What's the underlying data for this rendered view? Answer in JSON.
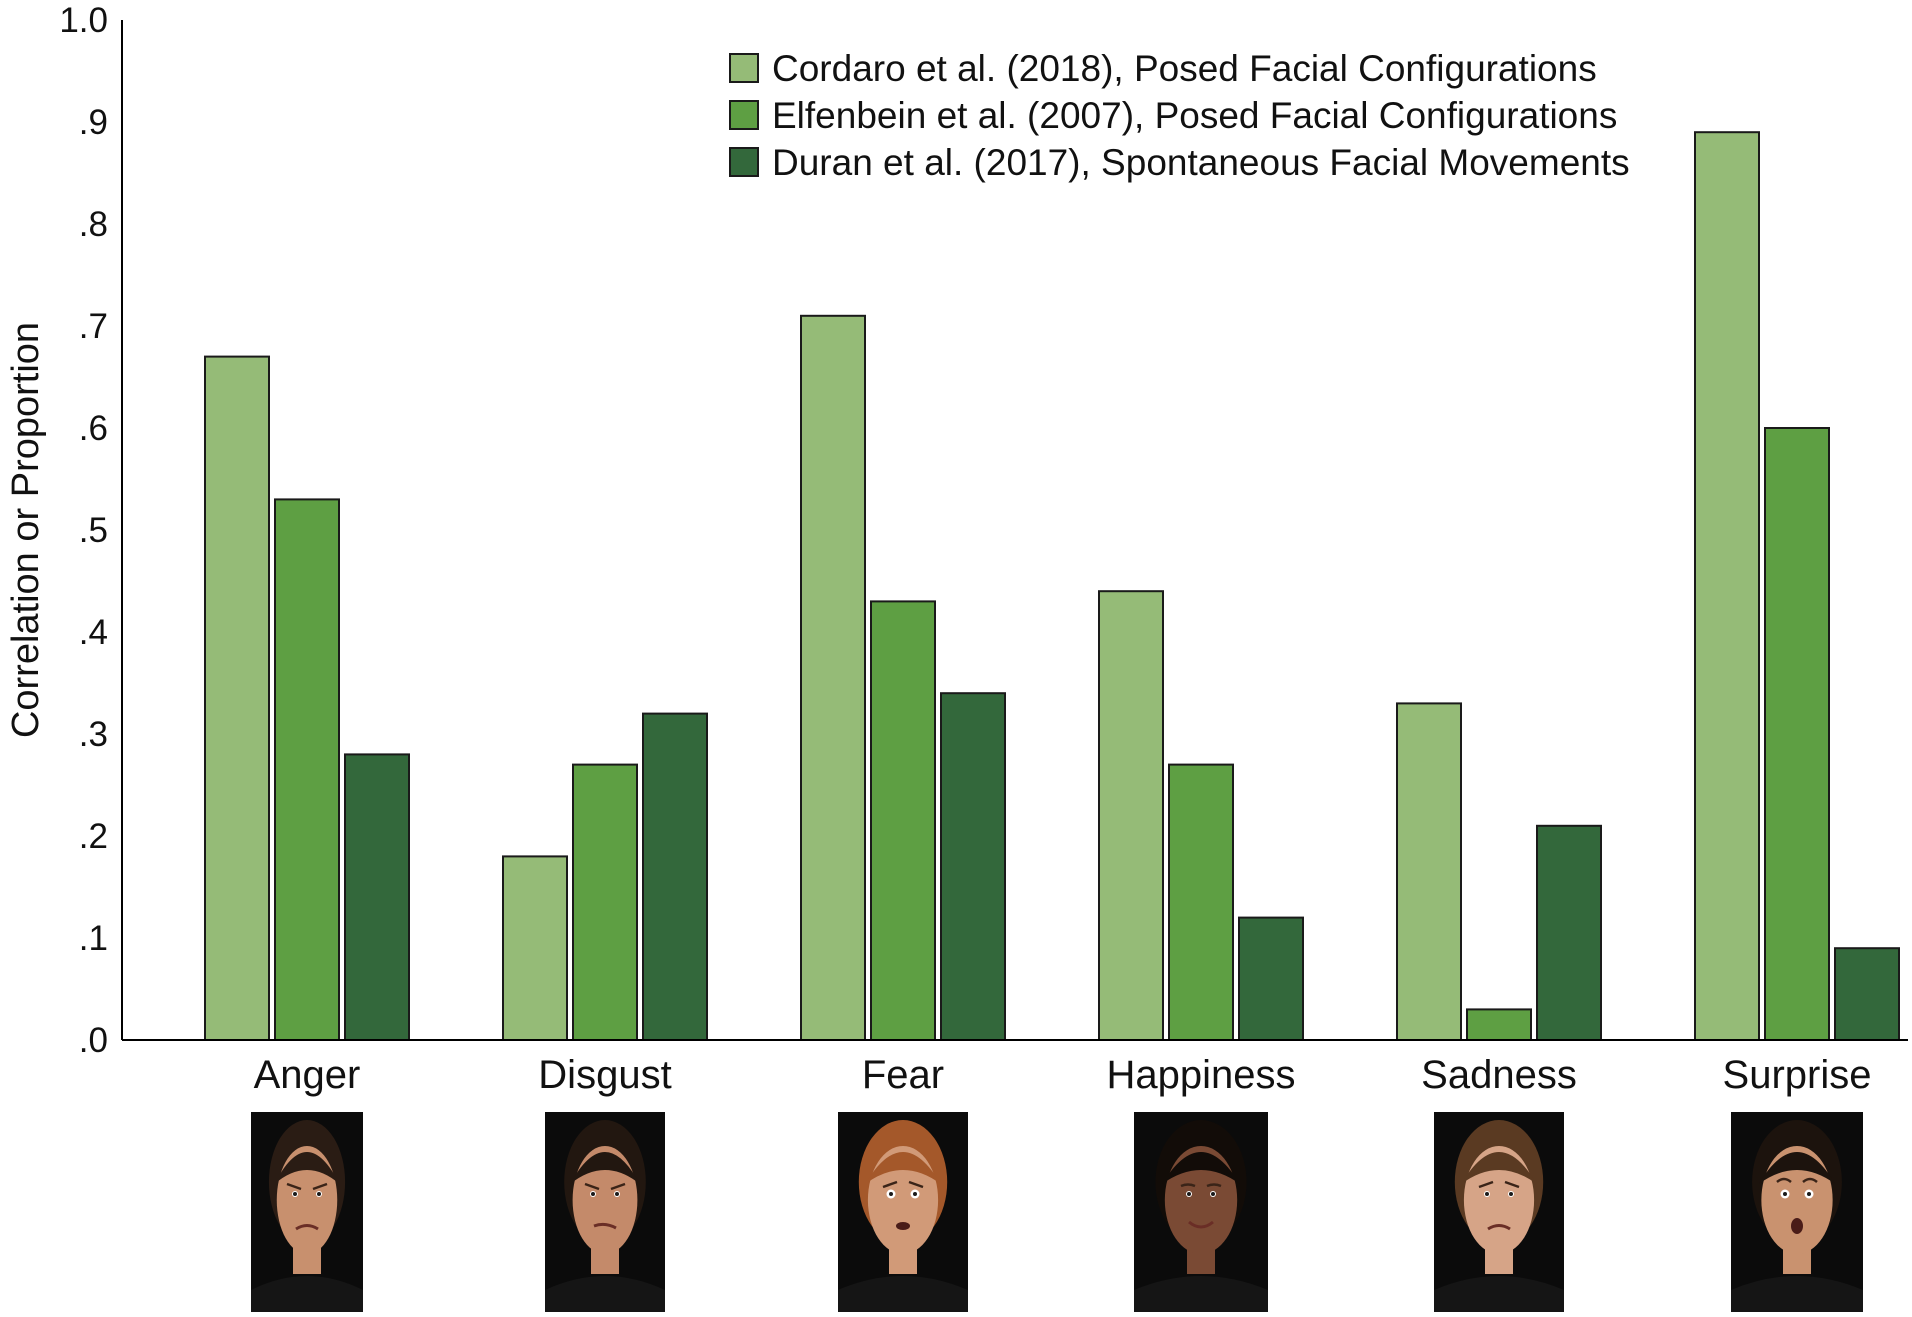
{
  "chart_data": {
    "type": "bar",
    "categories": [
      "Anger",
      "Disgust",
      "Fear",
      "Happiness",
      "Sadness",
      "Surprise"
    ],
    "series": [
      {
        "name": "Cordaro et al. (2018), Posed Facial Configurations",
        "color": "#95bb77",
        "values": [
          0.67,
          0.18,
          0.71,
          0.44,
          0.33,
          0.89
        ]
      },
      {
        "name": "Elfenbein et al. (2007), Posed Facial Configurations",
        "color": "#5e9f43",
        "values": [
          0.53,
          0.27,
          0.43,
          0.27,
          0.03,
          0.6
        ]
      },
      {
        "name": "Duran et al. (2017), Spontaneous Facial Movements",
        "color": "#33683b",
        "values": [
          0.28,
          0.32,
          0.34,
          0.12,
          0.21,
          0.09
        ]
      }
    ],
    "title": "",
    "xlabel": "",
    "ylabel": "Correlation or Proportion",
    "ylim": [
      0,
      1.0
    ],
    "yticks": [
      {
        "value": 0.0,
        "label": ".0"
      },
      {
        "value": 0.1,
        "label": ".1"
      },
      {
        "value": 0.2,
        "label": ".2"
      },
      {
        "value": 0.3,
        "label": ".3"
      },
      {
        "value": 0.4,
        "label": ".4"
      },
      {
        "value": 0.5,
        "label": ".5"
      },
      {
        "value": 0.6,
        "label": ".6"
      },
      {
        "value": 0.7,
        "label": ".7"
      },
      {
        "value": 0.8,
        "label": ".8"
      },
      {
        "value": 0.9,
        "label": ".9"
      },
      {
        "value": 1.0,
        "label": "1.0"
      }
    ],
    "grid": false,
    "legend_position": "top-center",
    "face_icons": [
      "angry-face-icon",
      "disgusted-face-icon",
      "fearful-face-icon",
      "happy-face-icon",
      "sad-face-icon",
      "surprised-face-icon"
    ]
  }
}
